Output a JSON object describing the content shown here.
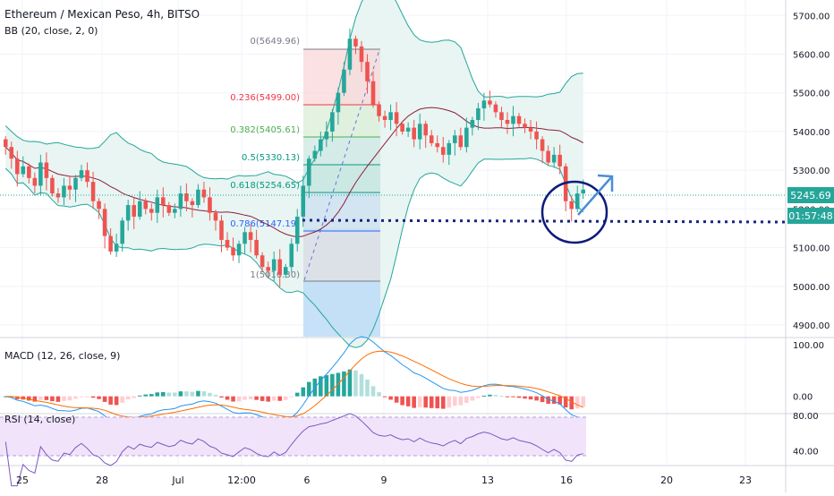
{
  "header": {
    "title": "Ethereum / Mexican Peso, 4h, BITSO",
    "bb_label": "BB (20, close, 2, 0)",
    "macd_label": "MACD (12, 26, close, 9)",
    "rsi_label": "RSI (14, close)"
  },
  "price_axis": {
    "ticks": [
      "5700.00",
      "5600.00",
      "5500.00",
      "5400.00",
      "5300.00",
      "5200.00",
      "5100.00",
      "5000.00",
      "4900.00"
    ],
    "last_price": "5245.69",
    "countdown": "01:57:48"
  },
  "macd_axis": {
    "ticks": [
      "100.00",
      "0.00"
    ]
  },
  "rsi_axis": {
    "ticks": [
      "80.00",
      "40.00"
    ]
  },
  "time_axis": {
    "ticks": [
      "25",
      "28",
      "Jul",
      "12:00",
      "6",
      "9",
      "13",
      "16",
      "20",
      "23"
    ]
  },
  "fib": {
    "levels": [
      {
        "label": "0(5649.96)",
        "color": "#787b86"
      },
      {
        "label": "0.236(5499.00)",
        "color": "#f23645"
      },
      {
        "label": "0.382(5405.61)",
        "color": "#4caf50"
      },
      {
        "label": "0.5(5330.13)",
        "color": "#089981"
      },
      {
        "label": "0.618(5254.65)",
        "color": "#089981"
      },
      {
        "label": "0.786(5147.19)",
        "color": "#2962ff"
      },
      {
        "label": "1(5010.30)",
        "color": "#787b86"
      }
    ]
  },
  "colors": {
    "up": "#26a69a",
    "down": "#ef5350",
    "bb": "#26a69a",
    "basis": "#8e1f3a",
    "bb_fill": "#e8f5f2",
    "rsi_fill": "#f1e4fa",
    "rsi_line": "#7e57c2",
    "macd_line": "#2196f3",
    "signal_line": "#ff6d00",
    "circle": "#0d1b7a",
    "arrow": "#4a8ed6",
    "dotted": "#1a237e",
    "last_price_line": "#26a69a"
  },
  "chart_data": {
    "type": "candlestick",
    "symbol": "Ethereum / Mexican Peso",
    "interval": "4h",
    "exchange": "BITSO",
    "ylim": [
      4870,
      5740
    ],
    "last_price": 5245.69,
    "close_path": [
      5360,
      5330,
      5290,
      5310,
      5280,
      5260,
      5320,
      5280,
      5240,
      5230,
      5260,
      5250,
      5280,
      5300,
      5270,
      5220,
      5200,
      5130,
      5090,
      5110,
      5170,
      5210,
      5180,
      5220,
      5200,
      5190,
      5230,
      5210,
      5190,
      5200,
      5240,
      5220,
      5210,
      5250,
      5230,
      5190,
      5170,
      5120,
      5100,
      5080,
      5110,
      5140,
      5120,
      5080,
      5050,
      5040,
      5070,
      5030,
      5050,
      5110,
      5180,
      5260,
      5330,
      5350,
      5380,
      5400,
      5450,
      5500,
      5560,
      5640,
      5620,
      5580,
      5530,
      5470,
      5440,
      5430,
      5450,
      5420,
      5400,
      5410,
      5380,
      5420,
      5390,
      5370,
      5360,
      5340,
      5370,
      5390,
      5360,
      5410,
      5430,
      5460,
      5480,
      5470,
      5450,
      5430,
      5420,
      5440,
      5420,
      5410,
      5400,
      5380,
      5350,
      5320,
      5340,
      5310,
      5220,
      5200,
      5240,
      5250
    ],
    "fibonacci": [
      {
        "ratio": 0,
        "price": 5649.96
      },
      {
        "ratio": 0.236,
        "price": 5499.0
      },
      {
        "ratio": 0.382,
        "price": 5405.61
      },
      {
        "ratio": 0.5,
        "price": 5330.13
      },
      {
        "ratio": 0.618,
        "price": 5254.65
      },
      {
        "ratio": 0.786,
        "price": 5147.19
      },
      {
        "ratio": 1,
        "price": 5010.3
      }
    ],
    "indicators": {
      "bollinger": {
        "length": 20,
        "source": "close",
        "mult": 2,
        "offset": 0
      },
      "macd": {
        "fast": 12,
        "slow": 26,
        "source": "close",
        "signal": 9,
        "ylim": [
          -30,
          105
        ]
      },
      "rsi": {
        "length": 14,
        "source": "close",
        "upper": 70,
        "lower": 30,
        "ylim": [
          25,
          82
        ]
      }
    },
    "x_ticks": [
      "25",
      "28",
      "Jul",
      "12:00",
      "6",
      "9",
      "13",
      "16",
      "20",
      "23"
    ]
  }
}
